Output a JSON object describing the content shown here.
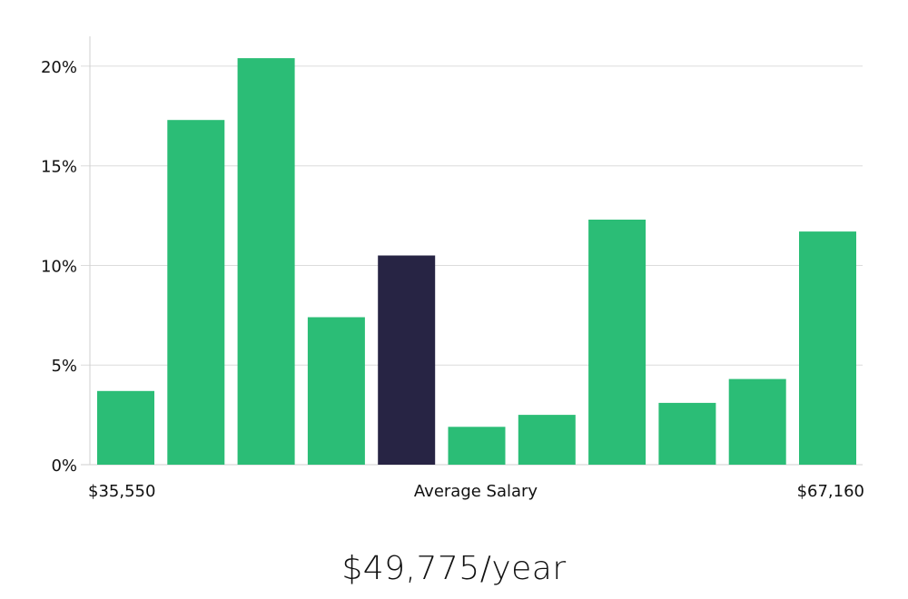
{
  "chart_data": {
    "type": "bar",
    "title": "",
    "xlabel": "Average Salary",
    "ylabel": "",
    "x_min_label": "$35,550",
    "x_max_label": "$67,160",
    "ylim": [
      0,
      21.5
    ],
    "yticks": [
      0,
      5,
      10,
      15,
      20
    ],
    "ytick_labels": [
      "0%",
      "5%",
      "10%",
      "15%",
      "20%"
    ],
    "grid": true,
    "values": [
      3.7,
      17.3,
      20.4,
      7.4,
      10.5,
      1.9,
      2.5,
      12.3,
      3.1,
      4.3,
      11.7
    ],
    "highlight_index": 4,
    "colors": {
      "bar": "#2bbd76",
      "highlight": "#272444",
      "grid": "#dcdcdc",
      "axis": "#cfcfcf"
    }
  },
  "summary": {
    "salary_text": "$49,775/year"
  }
}
